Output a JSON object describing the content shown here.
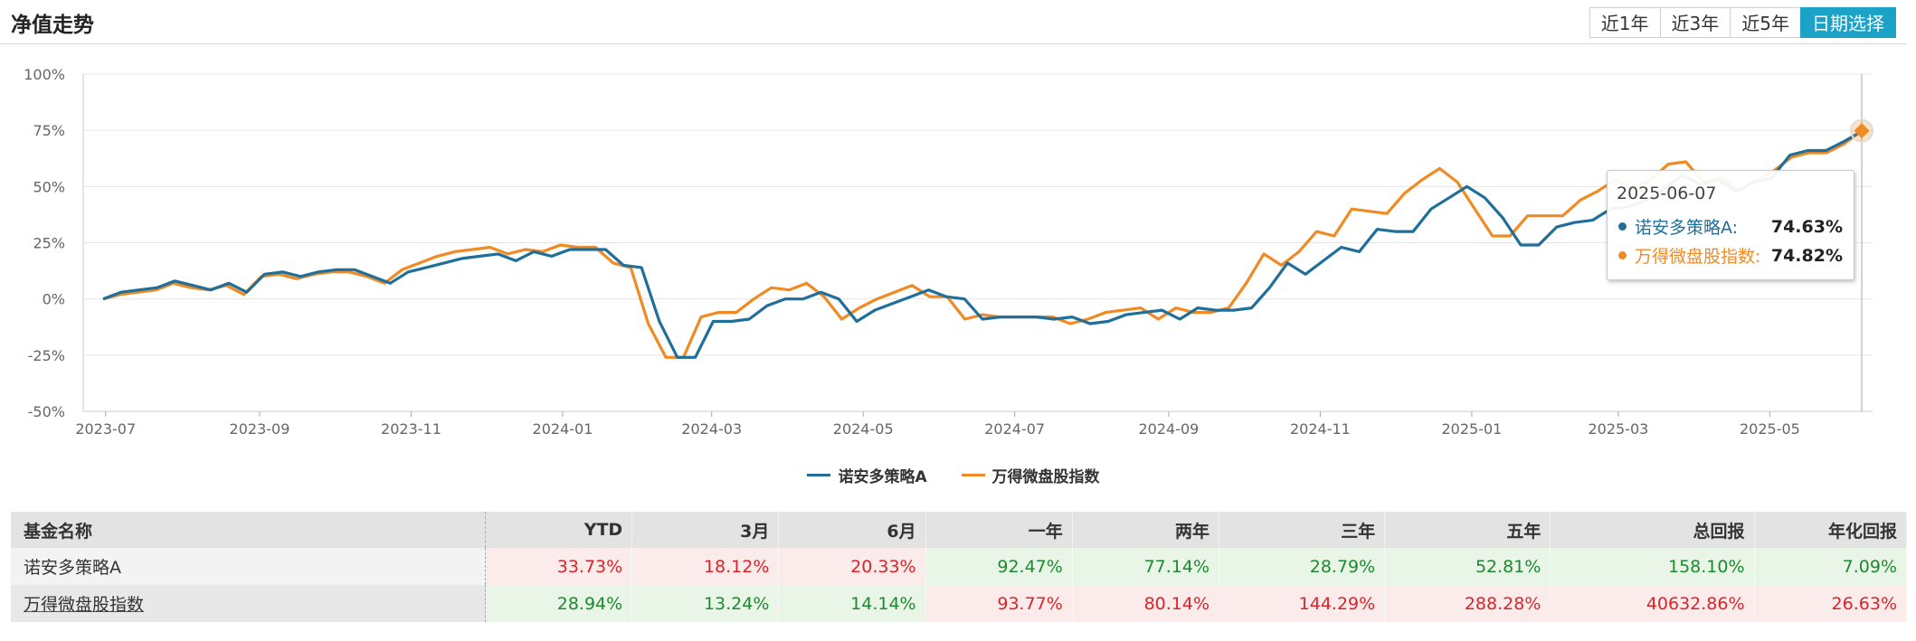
{
  "header": {
    "title": "净值走势",
    "range_buttons": [
      {
        "label": "近1年",
        "active": false
      },
      {
        "label": "近3年",
        "active": false
      },
      {
        "label": "近5年",
        "active": false
      },
      {
        "label": "日期选择",
        "active": true
      }
    ]
  },
  "chart_data": {
    "type": "line",
    "x_start": "2023-06-30",
    "x_end": "2025-06-07",
    "x_ticks": [
      "2023-07",
      "2023-09",
      "2023-11",
      "2024-01",
      "2024-03",
      "2024-05",
      "2024-07",
      "2024-09",
      "2024-11",
      "2025-01",
      "2025-03",
      "2025-05"
    ],
    "y_ticks": [
      "100%",
      "75%",
      "50%",
      "25%",
      "0%",
      "-25%",
      "-50%"
    ],
    "ylim": [
      -50,
      100
    ],
    "grid": true,
    "legend_placement": "bottom-center",
    "series": [
      {
        "name": "诺安多策略A",
        "color": "#1f6f9a",
        "values": [
          0,
          3,
          4,
          5,
          8,
          6,
          4,
          7,
          3,
          11,
          12,
          10,
          12,
          13,
          13,
          10,
          7,
          12,
          14,
          16,
          18,
          19,
          20,
          17,
          21,
          19,
          22,
          22,
          22,
          15,
          14,
          -10,
          -26,
          -26,
          -10,
          -10,
          -9,
          -3,
          0,
          0,
          3,
          0,
          -10,
          -5,
          -2,
          1,
          4,
          1,
          0,
          -9,
          -8,
          -8,
          -8,
          -9,
          -8,
          -11,
          -10,
          -7,
          -6,
          -5,
          -9,
          -4,
          -5,
          -5,
          -4,
          5,
          16,
          11,
          17,
          23,
          21,
          31,
          30,
          30,
          40,
          45,
          50,
          45,
          36,
          24,
          24,
          32,
          34,
          35,
          40,
          41,
          44,
          49,
          55,
          51,
          53,
          48,
          52,
          54,
          64,
          66,
          66,
          70,
          74.63
        ]
      },
      {
        "name": "万得微盘股指数",
        "color": "#f08a24",
        "values": [
          0,
          2,
          3,
          4,
          7,
          5,
          4,
          6,
          2,
          10,
          11,
          9,
          11,
          12,
          12,
          10,
          7,
          13,
          16,
          19,
          21,
          22,
          23,
          20,
          22,
          21,
          24,
          23,
          23,
          16,
          14,
          -11,
          -26,
          -26,
          -8,
          -6,
          -6,
          0,
          5,
          4,
          7,
          1,
          -9,
          -4,
          0,
          3,
          6,
          1,
          1,
          -9,
          -7,
          -8,
          -8,
          -8,
          -8,
          -11,
          -9,
          -6,
          -5,
          -4,
          -9,
          -4,
          -6,
          -6,
          -4,
          7,
          20,
          15,
          21,
          30,
          28,
          40,
          39,
          38,
          47,
          53,
          58,
          52,
          40,
          28,
          28,
          37,
          37,
          37,
          44,
          48,
          53,
          49,
          53,
          60,
          61,
          52,
          54,
          48,
          53,
          57,
          63,
          65,
          65,
          69,
          74.82
        ]
      }
    ],
    "tooltip": {
      "date": "2025-06-07",
      "rows": [
        {
          "name": "诺安多策略A:",
          "value": "74.63%",
          "color": "#1f6f9a"
        },
        {
          "name": "万得微盘股指数:",
          "value": "74.82%",
          "color": "#f08a24"
        }
      ]
    }
  },
  "legend": [
    {
      "label": "诺安多策略A",
      "color": "#1f6f9a"
    },
    {
      "label": "万得微盘股指数",
      "color": "#f08a24"
    }
  ],
  "table": {
    "headers": [
      "基金名称",
      "YTD",
      "3月",
      "6月",
      "一年",
      "两年",
      "三年",
      "五年",
      "总回报",
      "年化回报"
    ],
    "rows": [
      {
        "name": "诺安多策略A",
        "cells": [
          {
            "v": "33.73%",
            "s": "up"
          },
          {
            "v": "18.12%",
            "s": "up"
          },
          {
            "v": "20.33%",
            "s": "up"
          },
          {
            "v": "92.47%",
            "s": "down"
          },
          {
            "v": "77.14%",
            "s": "down"
          },
          {
            "v": "28.79%",
            "s": "down"
          },
          {
            "v": "52.81%",
            "s": "down"
          },
          {
            "v": "158.10%",
            "s": "down"
          },
          {
            "v": "7.09%",
            "s": "down"
          }
        ]
      },
      {
        "name": "万得微盘股指数",
        "cells": [
          {
            "v": "28.94%",
            "s": "down"
          },
          {
            "v": "13.24%",
            "s": "down"
          },
          {
            "v": "14.14%",
            "s": "down"
          },
          {
            "v": "93.77%",
            "s": "up"
          },
          {
            "v": "80.14%",
            "s": "up"
          },
          {
            "v": "144.29%",
            "s": "up"
          },
          {
            "v": "288.28%",
            "s": "up"
          },
          {
            "v": "40632.86%",
            "s": "up"
          },
          {
            "v": "26.63%",
            "s": "up"
          }
        ]
      }
    ]
  }
}
